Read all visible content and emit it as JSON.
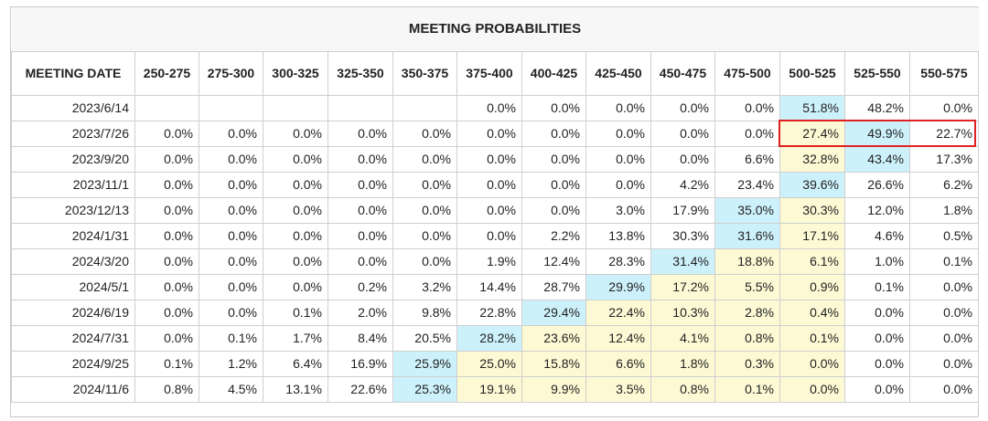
{
  "title": "MEETING PROBABILITIES",
  "columns": [
    "MEETING DATE",
    "250-275",
    "275-300",
    "300-325",
    "325-350",
    "350-375",
    "375-400",
    "400-425",
    "425-450",
    "450-475",
    "475-500",
    "500-525",
    "525-550",
    "550-575"
  ],
  "rows": [
    {
      "date": "2023/6/14",
      "values": [
        "",
        "",
        "",
        "",
        "",
        "0.0%",
        "0.0%",
        "0.0%",
        "0.0%",
        "0.0%",
        "51.8%",
        "48.2%",
        "0.0%"
      ],
      "shades": [
        "",
        "",
        "",
        "",
        "",
        "",
        "",
        "",
        "",
        "",
        "blue",
        "",
        ""
      ]
    },
    {
      "date": "2023/7/26",
      "values": [
        "0.0%",
        "0.0%",
        "0.0%",
        "0.0%",
        "0.0%",
        "0.0%",
        "0.0%",
        "0.0%",
        "0.0%",
        "0.0%",
        "27.4%",
        "49.9%",
        "22.7%"
      ],
      "shades": [
        "",
        "",
        "",
        "",
        "",
        "",
        "",
        "",
        "",
        "",
        "yellow",
        "blue",
        ""
      ]
    },
    {
      "date": "2023/9/20",
      "values": [
        "0.0%",
        "0.0%",
        "0.0%",
        "0.0%",
        "0.0%",
        "0.0%",
        "0.0%",
        "0.0%",
        "0.0%",
        "6.6%",
        "32.8%",
        "43.4%",
        "17.3%"
      ],
      "shades": [
        "",
        "",
        "",
        "",
        "",
        "",
        "",
        "",
        "",
        "",
        "yellow",
        "blue",
        ""
      ]
    },
    {
      "date": "2023/11/1",
      "values": [
        "0.0%",
        "0.0%",
        "0.0%",
        "0.0%",
        "0.0%",
        "0.0%",
        "0.0%",
        "0.0%",
        "4.2%",
        "23.4%",
        "39.6%",
        "26.6%",
        "6.2%"
      ],
      "shades": [
        "",
        "",
        "",
        "",
        "",
        "",
        "",
        "",
        "",
        "",
        "blue",
        "",
        ""
      ]
    },
    {
      "date": "2023/12/13",
      "values": [
        "0.0%",
        "0.0%",
        "0.0%",
        "0.0%",
        "0.0%",
        "0.0%",
        "0.0%",
        "3.0%",
        "17.9%",
        "35.0%",
        "30.3%",
        "12.0%",
        "1.8%"
      ],
      "shades": [
        "",
        "",
        "",
        "",
        "",
        "",
        "",
        "",
        "",
        "blue",
        "yellow",
        "",
        ""
      ]
    },
    {
      "date": "2024/1/31",
      "values": [
        "0.0%",
        "0.0%",
        "0.0%",
        "0.0%",
        "0.0%",
        "0.0%",
        "2.2%",
        "13.8%",
        "30.3%",
        "31.6%",
        "17.1%",
        "4.6%",
        "0.5%"
      ],
      "shades": [
        "",
        "",
        "",
        "",
        "",
        "",
        "",
        "",
        "",
        "blue",
        "yellow",
        "",
        ""
      ]
    },
    {
      "date": "2024/3/20",
      "values": [
        "0.0%",
        "0.0%",
        "0.0%",
        "0.0%",
        "0.0%",
        "1.9%",
        "12.4%",
        "28.3%",
        "31.4%",
        "18.8%",
        "6.1%",
        "1.0%",
        "0.1%"
      ],
      "shades": [
        "",
        "",
        "",
        "",
        "",
        "",
        "",
        "",
        "blue",
        "yellow",
        "yellow",
        "",
        ""
      ]
    },
    {
      "date": "2024/5/1",
      "values": [
        "0.0%",
        "0.0%",
        "0.0%",
        "0.2%",
        "3.2%",
        "14.4%",
        "28.7%",
        "29.9%",
        "17.2%",
        "5.5%",
        "0.9%",
        "0.1%",
        "0.0%"
      ],
      "shades": [
        "",
        "",
        "",
        "",
        "",
        "",
        "",
        "blue",
        "yellow",
        "yellow",
        "yellow",
        "",
        ""
      ]
    },
    {
      "date": "2024/6/19",
      "values": [
        "0.0%",
        "0.0%",
        "0.1%",
        "2.0%",
        "9.8%",
        "22.8%",
        "29.4%",
        "22.4%",
        "10.3%",
        "2.8%",
        "0.4%",
        "0.0%",
        "0.0%"
      ],
      "shades": [
        "",
        "",
        "",
        "",
        "",
        "",
        "blue",
        "yellow",
        "yellow",
        "yellow",
        "yellow",
        "",
        ""
      ]
    },
    {
      "date": "2024/7/31",
      "values": [
        "0.0%",
        "0.1%",
        "1.7%",
        "8.4%",
        "20.5%",
        "28.2%",
        "23.6%",
        "12.4%",
        "4.1%",
        "0.8%",
        "0.1%",
        "0.0%",
        "0.0%"
      ],
      "shades": [
        "",
        "",
        "",
        "",
        "",
        "blue",
        "yellow",
        "yellow",
        "yellow",
        "yellow",
        "yellow",
        "",
        ""
      ]
    },
    {
      "date": "2024/9/25",
      "values": [
        "0.1%",
        "1.2%",
        "6.4%",
        "16.9%",
        "25.9%",
        "25.0%",
        "15.8%",
        "6.6%",
        "1.8%",
        "0.3%",
        "0.0%",
        "0.0%",
        "0.0%"
      ],
      "shades": [
        "",
        "",
        "",
        "",
        "blue",
        "yellow",
        "yellow",
        "yellow",
        "yellow",
        "yellow",
        "yellow",
        "",
        ""
      ]
    },
    {
      "date": "2024/11/6",
      "values": [
        "0.8%",
        "4.5%",
        "13.1%",
        "22.6%",
        "25.3%",
        "19.1%",
        "9.9%",
        "3.5%",
        "0.8%",
        "0.1%",
        "0.0%",
        "0.0%",
        "0.0%"
      ],
      "shades": [
        "",
        "",
        "",
        "",
        "blue",
        "yellow",
        "yellow",
        "yellow",
        "yellow",
        "yellow",
        "yellow",
        "",
        ""
      ]
    }
  ],
  "colors": {
    "blue": "#cdf1fb",
    "yellow": "#fcf9d4",
    "highlight": "#e02020",
    "border": "#cfcfcf"
  }
}
